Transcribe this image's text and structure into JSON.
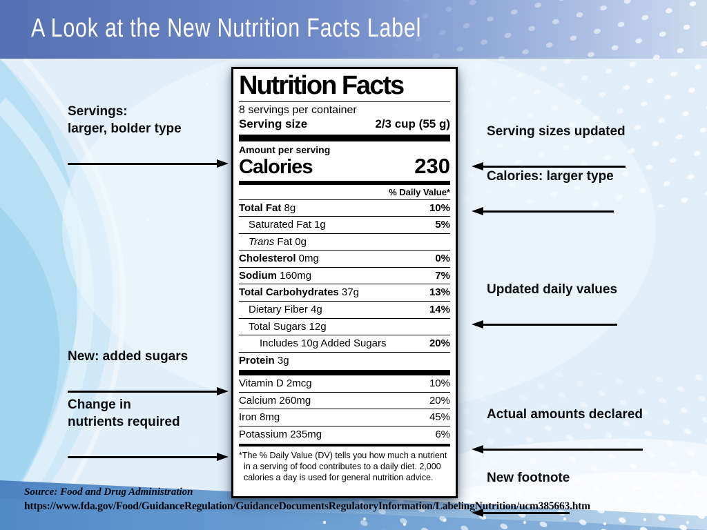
{
  "header": {
    "title": "A Look at the New Nutrition Facts Label"
  },
  "label": {
    "title": "Nutrition Facts",
    "servings_per_container": "8 servings per container",
    "serving_size_label": "Serving size",
    "serving_size_value": "2/3 cup (55 g)",
    "amount_per_serving": "Amount per serving",
    "calories_label": "Calories",
    "calories_value": "230",
    "daily_value_header": "% Daily Value*",
    "nutrients": [
      {
        "b": "Total Fat",
        "i": "",
        "t": " 8g",
        "dv": "10%",
        "ind": 0
      },
      {
        "b": "",
        "i": "",
        "t": "Saturated Fat 1g",
        "dv": "5%",
        "ind": 1
      },
      {
        "b": "",
        "i": "Trans",
        "t": " Fat 0g",
        "dv": "",
        "ind": 1
      },
      {
        "b": "Cholesterol",
        "i": "",
        "t": " 0mg",
        "dv": "0%",
        "ind": 0
      },
      {
        "b": "Sodium",
        "i": "",
        "t": " 160mg",
        "dv": "7%",
        "ind": 0
      },
      {
        "b": "Total Carbohydrates",
        "i": "",
        "t": " 37g",
        "dv": "13%",
        "ind": 0
      },
      {
        "b": "",
        "i": "",
        "t": "Dietary Fiber 4g",
        "dv": "14%",
        "ind": 1
      },
      {
        "b": "",
        "i": "",
        "t": "Total Sugars 12g",
        "dv": "",
        "ind": 1
      },
      {
        "b": "",
        "i": "",
        "t": "Includes 10g Added Sugars",
        "dv": "20%",
        "ind": 2
      },
      {
        "b": "Protein",
        "i": "",
        "t": " 3g",
        "dv": "",
        "ind": 0
      }
    ],
    "vitamins": [
      {
        "t": "Vitamin D 2mcg",
        "dv": "10%"
      },
      {
        "t": "Calcium 260mg",
        "dv": "20%"
      },
      {
        "t": "Iron 8mg",
        "dv": "45%"
      },
      {
        "t": "Potassium 235mg",
        "dv": "6%"
      }
    ],
    "footnote": "*The % Daily Value (DV) tells you how much a nutrient in a serving of food contributes to a daily diet. 2,000 calories a day is used for general nutrition advice."
  },
  "annotations": {
    "left": [
      {
        "text": "Servings:\nlarger, bolder type"
      },
      {
        "text": "New: added sugars"
      },
      {
        "text": "Change in\nnutrients required"
      }
    ],
    "right": [
      {
        "text": "Serving sizes updated"
      },
      {
        "text": "Calories: larger type"
      },
      {
        "text": "Updated daily values"
      },
      {
        "text": "Actual amounts declared"
      },
      {
        "text": "New footnote"
      }
    ]
  },
  "source": {
    "label": "Source: Food and Drug Administration",
    "url": "https://www.fda.gov/Food/GuidanceRegulation/GuidanceDocumentsRegulatoryInformation/LabelingNutrition/ucm385663.htm"
  },
  "colors": {
    "header_gradient_left": "#5571b3",
    "header_gradient_right": "#c7d7ee",
    "body_background": "#e2eef8",
    "band_blue": "#4c83c0",
    "swoosh_cyan": "#9fd4ee",
    "label_text": "#000000"
  }
}
